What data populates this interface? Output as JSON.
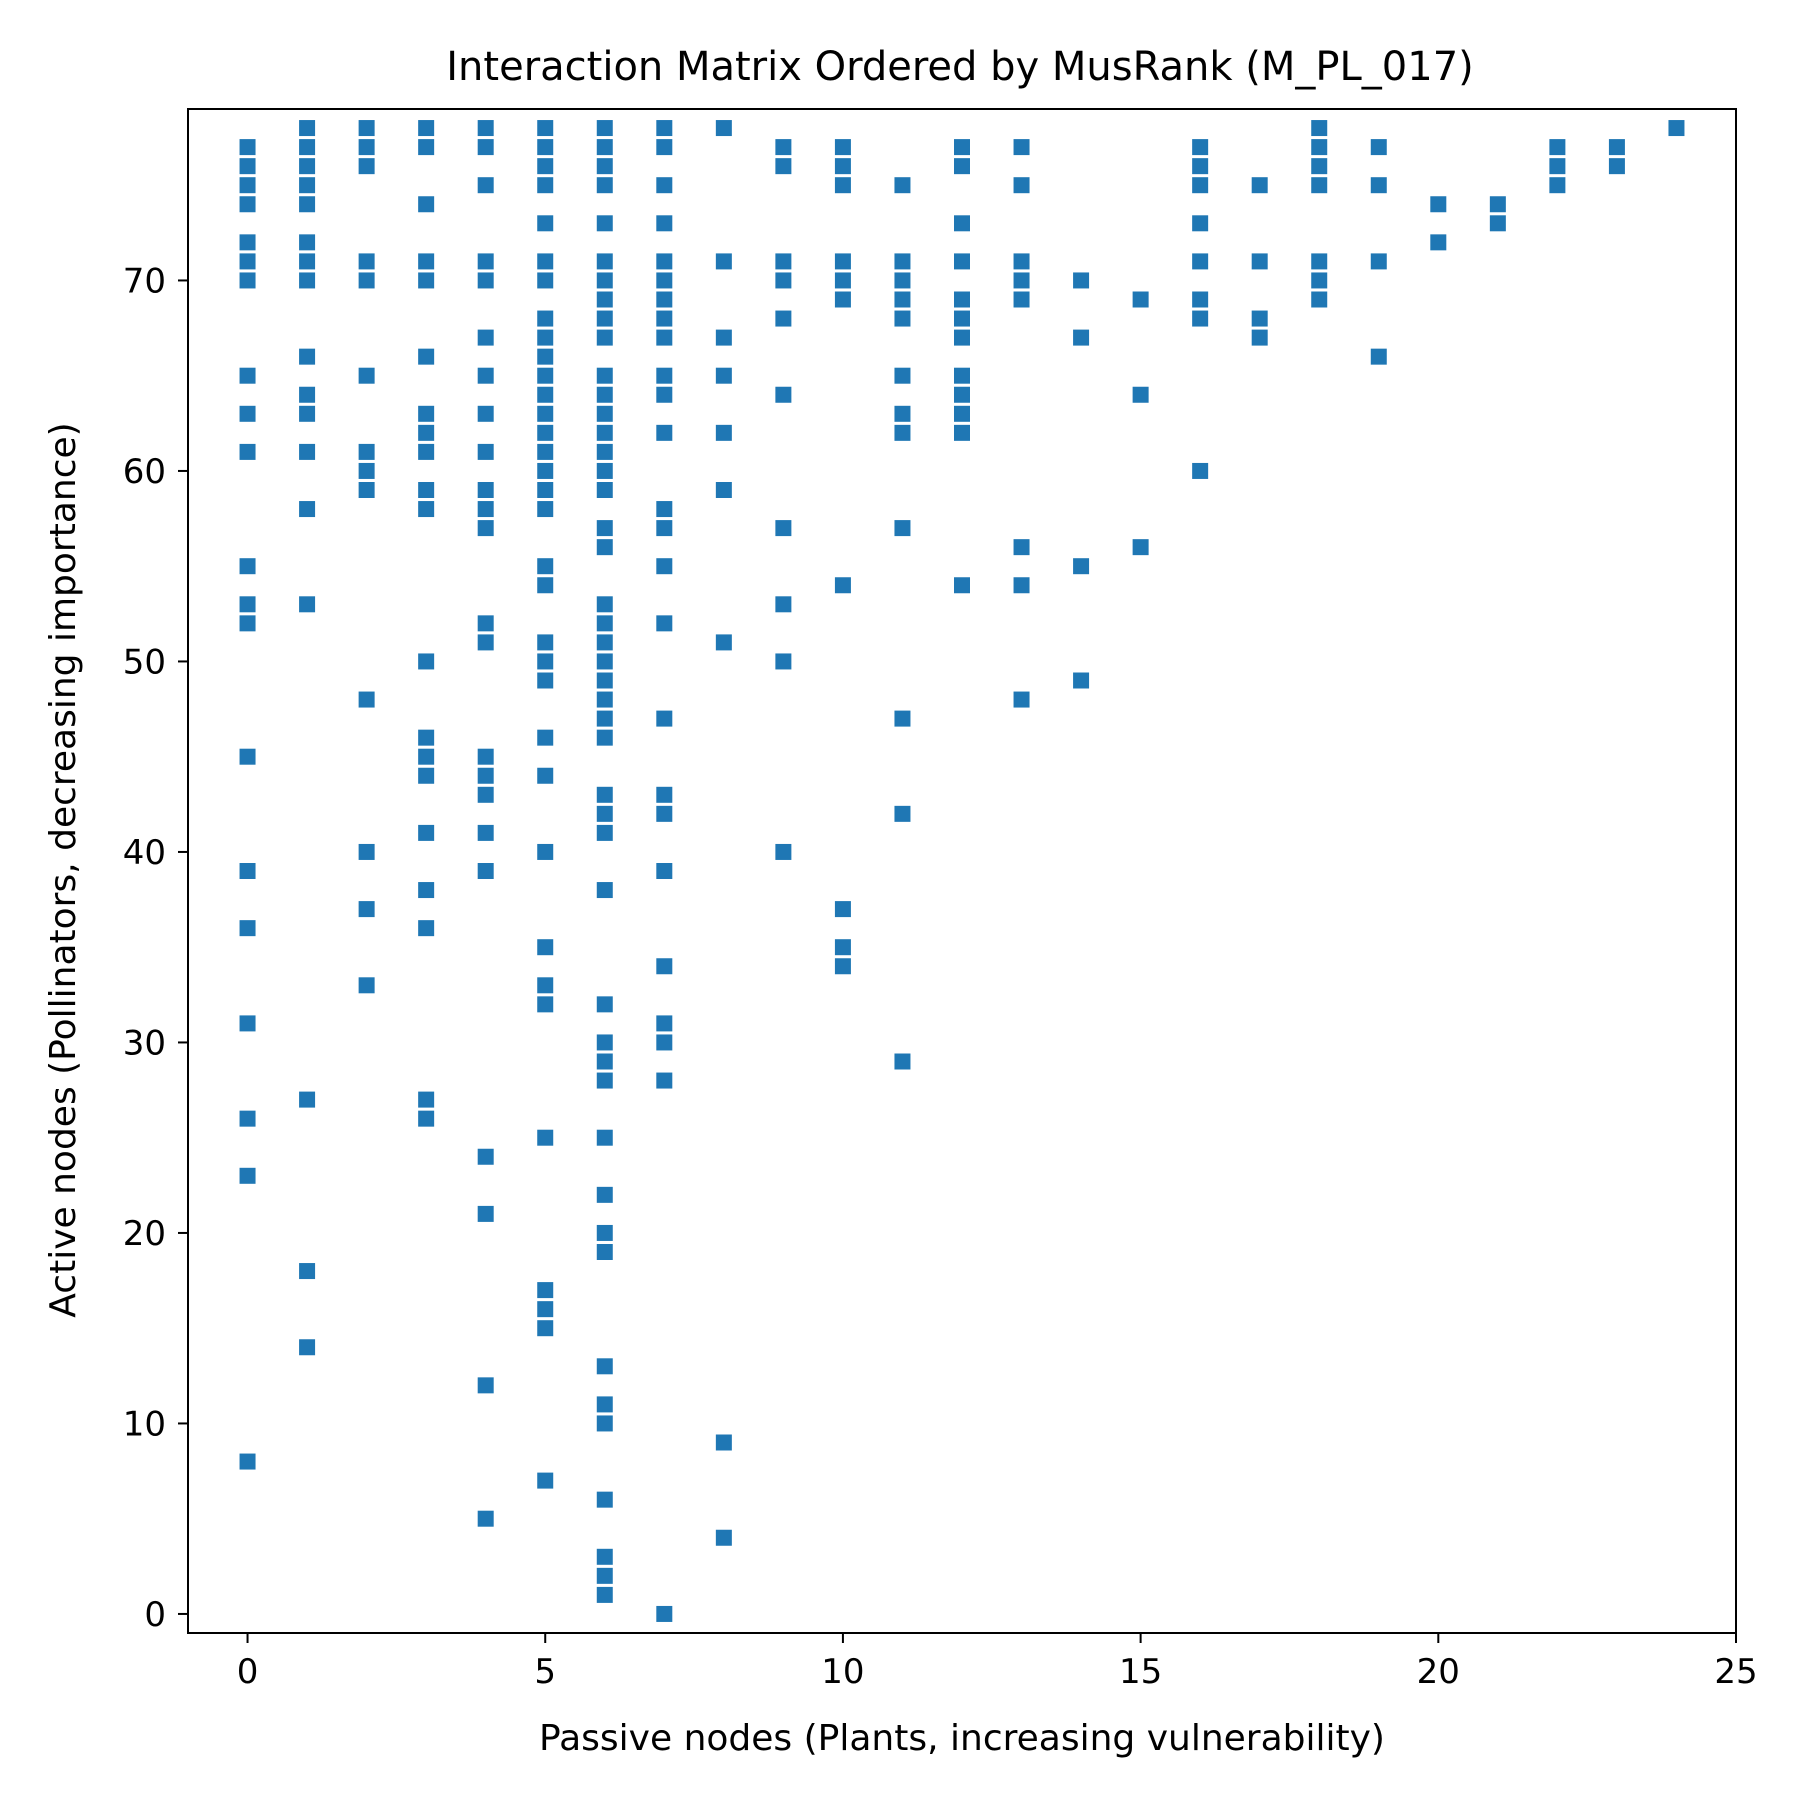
{
  "chart_data": {
    "type": "scatter",
    "title": "Interaction Matrix Ordered by MusRank (M_PL_017)",
    "xlabel": "Passive nodes (Plants, increasing vulnerability)",
    "ylabel": "Active nodes (Pollinators, decreasing importance)",
    "xlim": [
      -1,
      25
    ],
    "ylim": [
      -1,
      79
    ],
    "xticks": [
      0,
      5,
      10,
      15,
      20,
      25
    ],
    "yticks": [
      0,
      10,
      20,
      30,
      40,
      50,
      60,
      70
    ],
    "grid": false,
    "marker": "square",
    "color": "#1f77b4",
    "columns": [
      {
        "x": 0,
        "y": [
          77,
          76,
          75,
          74,
          72,
          71,
          70,
          65,
          63,
          61,
          55,
          53,
          52,
          45,
          39,
          36,
          31,
          26,
          23,
          8
        ]
      },
      {
        "x": 1,
        "y": [
          78,
          77,
          76,
          75,
          74,
          72,
          71,
          70,
          66,
          64,
          63,
          61,
          58,
          53,
          27,
          18,
          14
        ]
      },
      {
        "x": 2,
        "y": [
          78,
          77,
          76,
          71,
          70,
          65,
          61,
          60,
          59,
          48,
          40,
          37,
          33
        ]
      },
      {
        "x": 3,
        "y": [
          78,
          77,
          74,
          71,
          70,
          66,
          63,
          62,
          61,
          59,
          58,
          50,
          46,
          45,
          44,
          41,
          38,
          36,
          27,
          26
        ]
      },
      {
        "x": 4,
        "y": [
          78,
          77,
          75,
          71,
          70,
          67,
          65,
          63,
          61,
          59,
          58,
          57,
          52,
          51,
          45,
          44,
          43,
          41,
          39,
          24,
          21,
          12,
          5
        ]
      },
      {
        "x": 5,
        "y": [
          78,
          77,
          76,
          75,
          73,
          71,
          70,
          68,
          67,
          66,
          65,
          64,
          63,
          62,
          61,
          60,
          59,
          58,
          55,
          54,
          51,
          50,
          49,
          46,
          44,
          40,
          35,
          33,
          32,
          25,
          17,
          16,
          15,
          7
        ]
      },
      {
        "x": 6,
        "y": [
          78,
          77,
          76,
          75,
          73,
          71,
          70,
          69,
          68,
          67,
          65,
          64,
          63,
          62,
          61,
          60,
          59,
          57,
          56,
          53,
          52,
          51,
          50,
          49,
          48,
          47,
          46,
          43,
          42,
          41,
          38,
          32,
          30,
          29,
          28,
          25,
          22,
          20,
          19,
          13,
          11,
          10,
          6,
          3,
          2,
          1
        ]
      },
      {
        "x": 7,
        "y": [
          78,
          77,
          75,
          73,
          71,
          70,
          69,
          68,
          67,
          65,
          64,
          62,
          58,
          57,
          55,
          52,
          47,
          43,
          42,
          39,
          34,
          31,
          30,
          28,
          0
        ]
      },
      {
        "x": 8,
        "y": [
          78,
          71,
          67,
          65,
          62,
          59,
          51,
          9,
          4
        ]
      },
      {
        "x": 9,
        "y": [
          77,
          76,
          71,
          70,
          68,
          64,
          57,
          53,
          50,
          40
        ]
      },
      {
        "x": 10,
        "y": [
          77,
          76,
          75,
          71,
          70,
          69,
          54,
          37,
          35,
          34
        ]
      },
      {
        "x": 11,
        "y": [
          75,
          71,
          70,
          69,
          68,
          65,
          63,
          62,
          57,
          47,
          42,
          29
        ]
      },
      {
        "x": 12,
        "y": [
          77,
          76,
          73,
          71,
          69,
          68,
          67,
          65,
          64,
          63,
          62,
          54
        ]
      },
      {
        "x": 13,
        "y": [
          77,
          75,
          71,
          70,
          69,
          56,
          54,
          48
        ]
      },
      {
        "x": 14,
        "y": [
          70,
          67,
          55,
          49
        ]
      },
      {
        "x": 15,
        "y": [
          69,
          64,
          56
        ]
      },
      {
        "x": 16,
        "y": [
          77,
          76,
          75,
          73,
          71,
          69,
          68,
          60
        ]
      },
      {
        "x": 17,
        "y": [
          75,
          71,
          68,
          67
        ]
      },
      {
        "x": 18,
        "y": [
          78,
          77,
          76,
          75,
          71,
          70,
          69
        ]
      },
      {
        "x": 19,
        "y": [
          77,
          75,
          71,
          66
        ]
      },
      {
        "x": 20,
        "y": [
          74,
          72
        ]
      },
      {
        "x": 21,
        "y": [
          74,
          73
        ]
      },
      {
        "x": 22,
        "y": [
          77,
          76,
          75
        ]
      },
      {
        "x": 23,
        "y": [
          77,
          76
        ]
      },
      {
        "x": 24,
        "y": [
          78
        ]
      }
    ]
  }
}
